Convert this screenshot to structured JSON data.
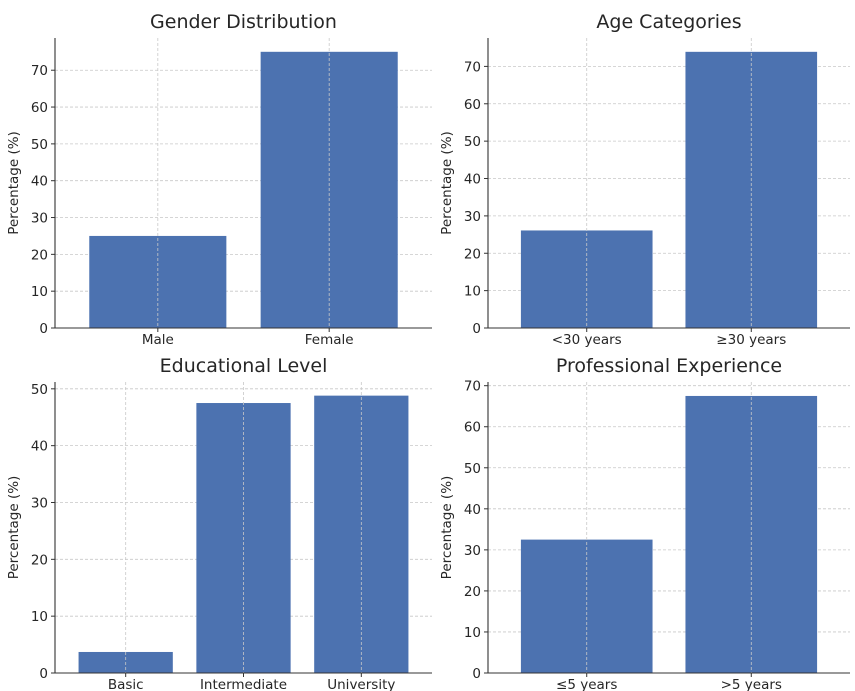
{
  "colors": {
    "bar": "#4c72b0",
    "grid": "#c8c8c8",
    "axis": "#333333"
  },
  "chart_data": [
    {
      "type": "bar",
      "title": "Gender Distribution",
      "xlabel": "",
      "ylabel": "Percentage (%)",
      "categories": [
        "Male",
        "Female"
      ],
      "values": [
        25,
        75
      ],
      "ylim": [
        0,
        78.75
      ],
      "yticks": [
        0,
        10,
        20,
        30,
        40,
        50,
        60,
        70
      ],
      "grid": true
    },
    {
      "type": "bar",
      "title": "Age Categories",
      "xlabel": "",
      "ylabel": "Percentage (%)",
      "categories": [
        "<30 years",
        "≥30 years"
      ],
      "values": [
        26.1,
        73.9
      ],
      "ylim": [
        0,
        77.6
      ],
      "yticks": [
        0,
        10,
        20,
        30,
        40,
        50,
        60,
        70
      ],
      "grid": true
    },
    {
      "type": "bar",
      "title": "Educational Level",
      "xlabel": "",
      "ylabel": "Percentage (%)",
      "categories": [
        "Basic",
        "Intermediate",
        "University"
      ],
      "values": [
        3.7,
        47.5,
        48.8
      ],
      "ylim": [
        0,
        51.2
      ],
      "yticks": [
        0,
        10,
        20,
        30,
        40,
        50
      ],
      "grid": true
    },
    {
      "type": "bar",
      "title": "Professional Experience",
      "xlabel": "",
      "ylabel": "Percentage (%)",
      "categories": [
        "≤5 years",
        ">5 years"
      ],
      "values": [
        32.5,
        67.5
      ],
      "ylim": [
        0,
        70.9
      ],
      "yticks": [
        0,
        10,
        20,
        30,
        40,
        50,
        60,
        70
      ],
      "grid": true
    }
  ]
}
